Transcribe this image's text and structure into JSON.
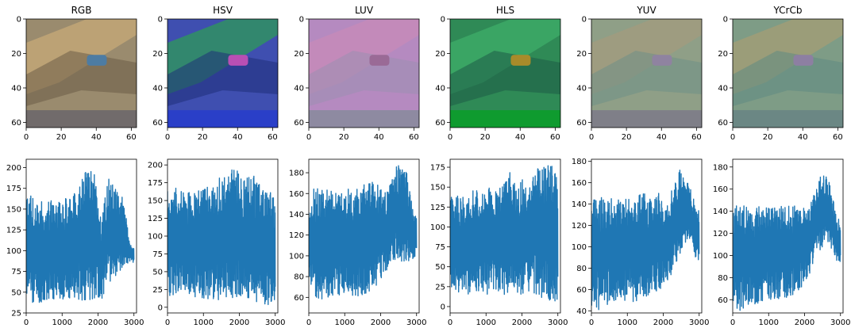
{
  "chart_data": [
    {
      "type": "image",
      "title": "RGB",
      "xticks": [
        "0",
        "20",
        "40",
        "60"
      ],
      "yticks": [
        "0",
        "20",
        "40",
        "60"
      ],
      "xlim": [
        0,
        63
      ],
      "ylim": [
        63,
        0
      ],
      "palette": {
        "base": "#9a8b6e",
        "accent1": "#c7aa78",
        "accent2": "#6b5c47",
        "bottom": "#716b6b",
        "sign": "#4d7ca3"
      }
    },
    {
      "type": "image",
      "title": "HSV",
      "xticks": [
        "0",
        "20",
        "40",
        "60"
      ],
      "yticks": [
        "0",
        "20",
        "40",
        "60"
      ],
      "xlim": [
        0,
        63
      ],
      "ylim": [
        63,
        0
      ],
      "palette": {
        "base": "#3f4fb0",
        "accent1": "#2f9a58",
        "accent2": "#1f2f7a",
        "bottom": "#2a3fc8",
        "sign": "#b84fb4"
      }
    },
    {
      "type": "image",
      "title": "LUV",
      "xticks": [
        "0",
        "20",
        "40",
        "60"
      ],
      "yticks": [
        "0",
        "20",
        "40",
        "60"
      ],
      "xlim": [
        0,
        63
      ],
      "ylim": [
        63,
        0
      ],
      "palette": {
        "base": "#b58ac0",
        "accent1": "#c889b8",
        "accent2": "#9a8fb0",
        "bottom": "#8e8aa1",
        "sign": "#9a6a96"
      }
    },
    {
      "type": "image",
      "title": "HLS",
      "xticks": [
        "0",
        "20",
        "40",
        "60"
      ],
      "yticks": [
        "0",
        "20",
        "40",
        "60"
      ],
      "xlim": [
        0,
        63
      ],
      "ylim": [
        63,
        0
      ],
      "palette": {
        "base": "#2f8a56",
        "accent1": "#3fae6a",
        "accent2": "#1e5b47",
        "bottom": "#0f9b2f",
        "sign": "#a88b2a"
      }
    },
    {
      "type": "image",
      "title": "YUV",
      "xticks": [
        "0",
        "20",
        "40",
        "60"
      ],
      "yticks": [
        "0",
        "20",
        "40",
        "60"
      ],
      "xlim": [
        0,
        63
      ],
      "ylim": [
        63,
        0
      ],
      "palette": {
        "base": "#8f9f87",
        "accent1": "#a39b7e",
        "accent2": "#6f8f86",
        "bottom": "#7f7f88",
        "sign": "#8f83a0"
      }
    },
    {
      "type": "image",
      "title": "YCrCb",
      "xticks": [
        "0",
        "20",
        "40",
        "60"
      ],
      "yticks": [
        "0",
        "20",
        "40",
        "60"
      ],
      "xlim": [
        0,
        63
      ],
      "ylim": [
        63,
        0
      ],
      "palette": {
        "base": "#7e9c86",
        "accent1": "#a59d74",
        "accent2": "#5f8b84",
        "bottom": "#6b8784",
        "sign": "#8d7fa2"
      }
    },
    {
      "type": "line",
      "series_color": "#1f77b4",
      "xlim": [
        0,
        3072
      ],
      "ylim": [
        25,
        210
      ],
      "xticks": [
        "0",
        "1000",
        "2000",
        "3000"
      ],
      "yticks": [
        "25",
        "50",
        "75",
        "100",
        "125",
        "150",
        "175",
        "200"
      ],
      "envelope": {
        "x": [
          0,
          200,
          600,
          1000,
          1400,
          1700,
          1900,
          2100,
          2300,
          2500,
          2700,
          2900,
          3072
        ],
        "hi": [
          172,
          165,
          160,
          162,
          170,
          200,
          195,
          140,
          190,
          175,
          165,
          108,
          100
        ],
        "lo": [
          45,
          35,
          38,
          40,
          40,
          40,
          42,
          40,
          60,
          70,
          80,
          85,
          85
        ]
      },
      "seed": 11
    },
    {
      "type": "line",
      "series_color": "#1f77b4",
      "xlim": [
        0,
        3072
      ],
      "ylim": [
        -8,
        208
      ],
      "xticks": [
        "0",
        "1000",
        "2000",
        "3000"
      ],
      "yticks": [
        "0",
        "25",
        "50",
        "75",
        "100",
        "125",
        "150",
        "175",
        "200"
      ],
      "envelope": {
        "x": [
          0,
          200,
          600,
          1000,
          1400,
          1700,
          1900,
          2100,
          2300,
          2500,
          2700,
          2900,
          3072
        ],
        "hi": [
          170,
          168,
          165,
          168,
          180,
          200,
          197,
          175,
          190,
          180,
          170,
          160,
          145
        ],
        "lo": [
          15,
          15,
          14,
          12,
          10,
          12,
          12,
          10,
          8,
          6,
          4,
          2,
          10
        ]
      },
      "seed": 23
    },
    {
      "type": "line",
      "series_color": "#1f77b4",
      "xlim": [
        0,
        3072
      ],
      "ylim": [
        45,
        193
      ],
      "xticks": [
        "0",
        "1000",
        "2000",
        "3000"
      ],
      "yticks": [
        "60",
        "80",
        "100",
        "120",
        "140",
        "160",
        "180"
      ],
      "envelope": {
        "x": [
          0,
          200,
          600,
          1000,
          1400,
          1700,
          1900,
          2100,
          2300,
          2500,
          2700,
          2900,
          3072
        ],
        "hi": [
          165,
          165,
          163,
          163,
          168,
          172,
          170,
          160,
          180,
          188,
          186,
          145,
          135
        ],
        "lo": [
          68,
          55,
          60,
          62,
          60,
          65,
          70,
          80,
          90,
          92,
          95,
          95,
          100
        ]
      },
      "seed": 37
    },
    {
      "type": "line",
      "series_color": "#1f77b4",
      "xlim": [
        0,
        3072
      ],
      "ylim": [
        -8,
        185
      ],
      "xticks": [
        "0",
        "1000",
        "2000",
        "3000"
      ],
      "yticks": [
        "0",
        "25",
        "50",
        "75",
        "100",
        "125",
        "150",
        "175"
      ],
      "envelope": {
        "x": [
          0,
          200,
          600,
          1000,
          1400,
          1700,
          1900,
          2100,
          2300,
          2500,
          2700,
          2900,
          3072
        ],
        "hi": [
          140,
          140,
          145,
          148,
          155,
          170,
          160,
          160,
          170,
          175,
          177,
          176,
          140
        ],
        "lo": [
          17,
          15,
          15,
          14,
          14,
          15,
          14,
          13,
          12,
          10,
          8,
          6,
          8
        ]
      },
      "seed": 41
    },
    {
      "type": "line",
      "series_color": "#1f77b4",
      "xlim": [
        0,
        3072
      ],
      "ylim": [
        38,
        182
      ],
      "xticks": [
        "0",
        "1000",
        "2000",
        "3000"
      ],
      "yticks": [
        "40",
        "60",
        "80",
        "100",
        "120",
        "140",
        "160",
        "180"
      ],
      "envelope": {
        "x": [
          0,
          200,
          600,
          1000,
          1400,
          1700,
          1900,
          2100,
          2300,
          2500,
          2700,
          2900,
          3072
        ],
        "hi": [
          145,
          147,
          145,
          145,
          150,
          150,
          150,
          145,
          160,
          175,
          160,
          140,
          135
        ],
        "lo": [
          45,
          40,
          48,
          50,
          45,
          55,
          60,
          65,
          80,
          95,
          110,
          90,
          85
        ]
      },
      "seed": 53
    },
    {
      "type": "line",
      "series_color": "#1f77b4",
      "xlim": [
        0,
        3072
      ],
      "ylim": [
        48,
        187
      ],
      "xticks": [
        "0",
        "1000",
        "2000",
        "3000"
      ],
      "yticks": [
        "60",
        "80",
        "100",
        "120",
        "140",
        "160",
        "180"
      ],
      "envelope": {
        "x": [
          0,
          200,
          600,
          1000,
          1400,
          1700,
          1900,
          2100,
          2300,
          2500,
          2700,
          2900,
          3072
        ],
        "hi": [
          145,
          145,
          145,
          143,
          145,
          145,
          145,
          140,
          160,
          178,
          165,
          135,
          130
        ],
        "lo": [
          55,
          50,
          55,
          60,
          60,
          62,
          70,
          80,
          95,
          105,
          110,
          95,
          90
        ]
      },
      "seed": 67
    }
  ]
}
